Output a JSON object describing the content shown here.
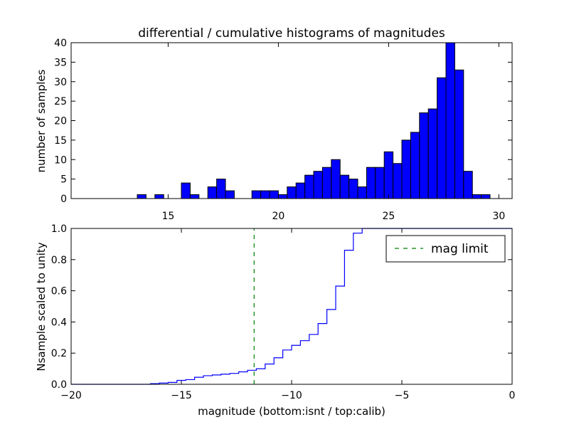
{
  "chart_data": [
    {
      "type": "bar",
      "title": "differential / cumulative histograms of magnitudes",
      "xlabel": "",
      "ylabel": "number of samples",
      "xlim": [
        10.6,
        30.6
      ],
      "ylim": [
        0,
        40
      ],
      "x_ticks": [
        "15",
        "20",
        "25",
        "30"
      ],
      "y_ticks": [
        "0",
        "5",
        "10",
        "15",
        "20",
        "25",
        "30",
        "35",
        "40"
      ],
      "tick_position": "top axis",
      "bar_color": "#0000ff",
      "bin_width": 0.4,
      "bins": [
        {
          "x": 13.6,
          "value": 1
        },
        {
          "x": 14.4,
          "value": 1
        },
        {
          "x": 15.6,
          "value": 4
        },
        {
          "x": 16.0,
          "value": 1
        },
        {
          "x": 16.8,
          "value": 3
        },
        {
          "x": 17.2,
          "value": 5
        },
        {
          "x": 17.6,
          "value": 2
        },
        {
          "x": 18.8,
          "value": 2
        },
        {
          "x": 19.2,
          "value": 2
        },
        {
          "x": 19.6,
          "value": 2
        },
        {
          "x": 20.0,
          "value": 1
        },
        {
          "x": 20.4,
          "value": 3
        },
        {
          "x": 20.8,
          "value": 4
        },
        {
          "x": 21.2,
          "value": 6
        },
        {
          "x": 21.6,
          "value": 7
        },
        {
          "x": 22.0,
          "value": 8
        },
        {
          "x": 22.4,
          "value": 10
        },
        {
          "x": 22.8,
          "value": 6
        },
        {
          "x": 23.2,
          "value": 5
        },
        {
          "x": 23.6,
          "value": 3
        },
        {
          "x": 24.0,
          "value": 8
        },
        {
          "x": 24.4,
          "value": 8
        },
        {
          "x": 24.8,
          "value": 12
        },
        {
          "x": 25.2,
          "value": 9
        },
        {
          "x": 25.6,
          "value": 15
        },
        {
          "x": 26.0,
          "value": 17
        },
        {
          "x": 26.4,
          "value": 22
        },
        {
          "x": 26.8,
          "value": 23
        },
        {
          "x": 27.2,
          "value": 31
        },
        {
          "x": 27.6,
          "value": 40
        },
        {
          "x": 28.0,
          "value": 33
        },
        {
          "x": 28.4,
          "value": 7
        },
        {
          "x": 28.8,
          "value": 1
        },
        {
          "x": 29.2,
          "value": 1
        }
      ]
    },
    {
      "type": "line",
      "title": "",
      "xlabel": "magnitude (bottom:isnt / top:calib)",
      "ylabel": "Nsample scaled to unity",
      "xlim": [
        -20,
        0
      ],
      "ylim": [
        0,
        1
      ],
      "x_ticks": [
        "−20",
        "−15",
        "−10",
        "−5",
        "0"
      ],
      "y_ticks": [
        "0.0",
        "0.2",
        "0.4",
        "0.6",
        "0.8",
        "1.0"
      ],
      "line_color": "#0000ff",
      "series": [
        {
          "step": true,
          "x": [
            -20,
            -16.4,
            -16.0,
            -15.6,
            -15.2,
            -14.8,
            -14.4,
            -14.0,
            -13.6,
            -13.2,
            -12.8,
            -12.4,
            -12.0,
            -11.6,
            -11.2,
            -10.8,
            -10.4,
            -10.0,
            -9.6,
            -9.2,
            -8.8,
            -8.4,
            -8.0,
            -7.6,
            -7.2,
            -6.8,
            -0.2
          ],
          "values": [
            0.0,
            0.004,
            0.008,
            0.012,
            0.025,
            0.03,
            0.045,
            0.055,
            0.06,
            0.065,
            0.07,
            0.08,
            0.09,
            0.1,
            0.13,
            0.17,
            0.22,
            0.25,
            0.28,
            0.32,
            0.39,
            0.48,
            0.63,
            0.86,
            0.97,
            1.0,
            1.0
          ]
        }
      ],
      "reference_line": {
        "x": -11.7,
        "color": "#008000",
        "style": "dashed"
      },
      "legend": {
        "position": "top-right",
        "entries": [
          "mag limit"
        ]
      }
    }
  ]
}
